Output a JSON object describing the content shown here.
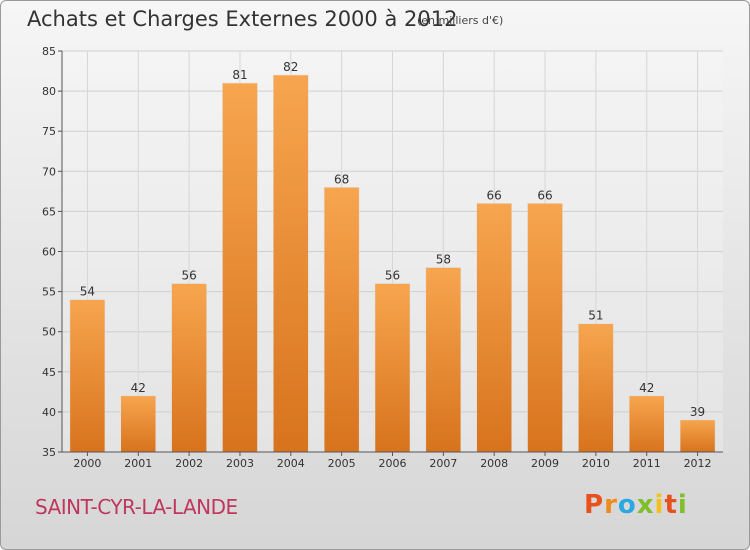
{
  "header": {
    "title": "Achats et Charges Externes 2000 à 2012",
    "unit": "(en milliers d'€)"
  },
  "footer": {
    "town": "SAINT-CYR-LA-LANDE",
    "logo": "Proxiti",
    "logo_colors": [
      "#e8501d",
      "#f08a1c",
      "#2aa8e0",
      "#7fbf2a",
      "#f2c21b",
      "#e8501d",
      "#7fbf2a"
    ]
  },
  "chart_data": {
    "type": "bar",
    "categories": [
      "2000",
      "2001",
      "2002",
      "2003",
      "2004",
      "2005",
      "2006",
      "2007",
      "2008",
      "2009",
      "2010",
      "2011",
      "2012"
    ],
    "values": [
      54,
      42,
      56,
      81,
      82,
      68,
      56,
      58,
      66,
      66,
      51,
      42,
      39
    ],
    "ylim": [
      35,
      85
    ],
    "yticks": [
      35,
      40,
      45,
      50,
      55,
      60,
      65,
      70,
      75,
      80,
      85
    ],
    "grid": true,
    "bar_color_top": "#f7a54f",
    "bar_color_bottom": "#d8731d"
  }
}
